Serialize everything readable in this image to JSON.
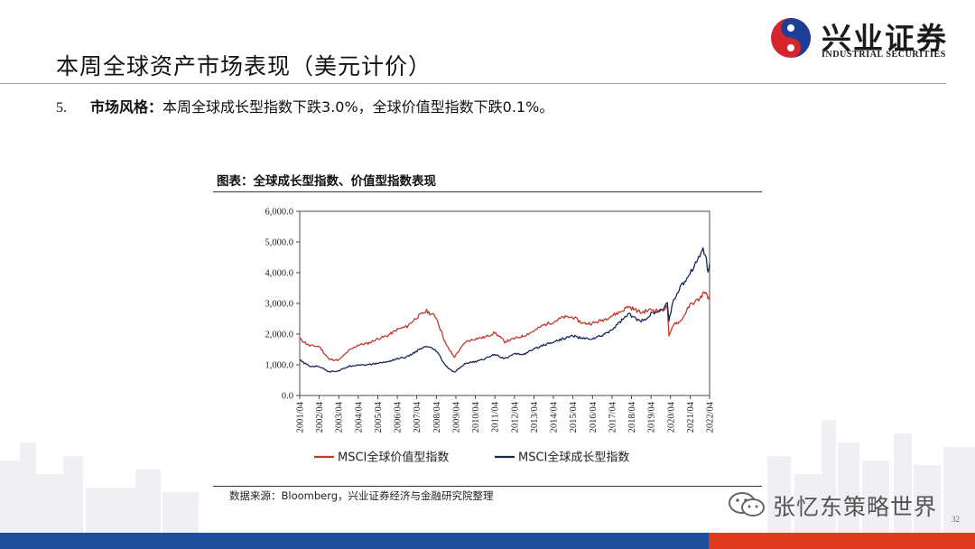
{
  "slide": {
    "title": "本周全球资产市场表现（美元计价）",
    "bullet_number": "5.",
    "bullet_label": "市场风格：",
    "bullet_text": "本周全球成长型指数下跌3.0%，全球价值型指数下跌0.1%。",
    "source": "数据来源：Bloomberg，兴业证券经济与金融研究院整理",
    "page_number": "32"
  },
  "logo": {
    "name_cn": "兴业证券",
    "name_en": "INDUSTRIAL SECURITIES"
  },
  "watermark": {
    "text": "张忆东策略世界",
    "icon": "wechat-icon"
  },
  "colors": {
    "value_series": "#c0392b",
    "growth_series": "#14285a",
    "logo_red": "#d6252c",
    "logo_blue": "#1c3f94",
    "footer_red": "#e23a1e",
    "footer_blue": "#1f4e9a"
  },
  "chart_data": {
    "type": "line",
    "title": "图表：全球成长型指数、价值型指数表现",
    "x": [
      "2001/04",
      "2002/04",
      "2003/04",
      "2004/04",
      "2005/04",
      "2006/04",
      "2007/04",
      "2008/04",
      "2009/04",
      "2010/04",
      "2011/04",
      "2012/04",
      "2013/04",
      "2014/04",
      "2015/04",
      "2016/04",
      "2017/04",
      "2018/04",
      "2019/04",
      "2020/04",
      "2021/04",
      "2022/04"
    ],
    "ylim": [
      0,
      6000
    ],
    "yticks": [
      "0.0",
      "1,000.0",
      "2,000.0",
      "3,000.0",
      "4,000.0",
      "5,000.0",
      "6,000.0"
    ],
    "ytick_values": [
      0,
      1000,
      2000,
      3000,
      4000,
      5000,
      6000
    ],
    "legend_position": "bottom",
    "series": [
      {
        "name": "MSCI全球价值型指数",
        "color": "#c0392b",
        "points": [
          [
            "2001/04",
            1850
          ],
          [
            "2001/10",
            1620
          ],
          [
            "2002/04",
            1600
          ],
          [
            "2002/10",
            1180
          ],
          [
            "2003/04",
            1150
          ],
          [
            "2003/10",
            1450
          ],
          [
            "2004/04",
            1650
          ],
          [
            "2004/10",
            1700
          ],
          [
            "2005/04",
            1850
          ],
          [
            "2005/10",
            1950
          ],
          [
            "2006/04",
            2150
          ],
          [
            "2006/10",
            2250
          ],
          [
            "2007/04",
            2550
          ],
          [
            "2007/10",
            2750
          ],
          [
            "2008/04",
            2550
          ],
          [
            "2008/10",
            1650
          ],
          [
            "2009/03",
            1250
          ],
          [
            "2009/10",
            1750
          ],
          [
            "2010/04",
            1850
          ],
          [
            "2010/10",
            1900
          ],
          [
            "2011/04",
            2050
          ],
          [
            "2011/10",
            1750
          ],
          [
            "2012/04",
            1850
          ],
          [
            "2012/10",
            1950
          ],
          [
            "2013/04",
            2100
          ],
          [
            "2013/10",
            2300
          ],
          [
            "2014/04",
            2400
          ],
          [
            "2014/10",
            2550
          ],
          [
            "2015/04",
            2550
          ],
          [
            "2015/10",
            2350
          ],
          [
            "2016/04",
            2350
          ],
          [
            "2016/10",
            2450
          ],
          [
            "2017/04",
            2600
          ],
          [
            "2017/10",
            2750
          ],
          [
            "2018/02",
            2900
          ],
          [
            "2018/10",
            2700
          ],
          [
            "2019/04",
            2800
          ],
          [
            "2019/10",
            2750
          ],
          [
            "2020/02",
            2900
          ],
          [
            "2020/03",
            1900
          ],
          [
            "2020/06",
            2350
          ],
          [
            "2020/10",
            2400
          ],
          [
            "2021/04",
            2950
          ],
          [
            "2021/10",
            3150
          ],
          [
            "2022/01",
            3400
          ],
          [
            "2022/03",
            3150
          ],
          [
            "2022/04",
            3300
          ]
        ]
      },
      {
        "name": "MSCI全球成长型指数",
        "color": "#14285a",
        "points": [
          [
            "2001/04",
            1150
          ],
          [
            "2001/10",
            950
          ],
          [
            "2002/04",
            950
          ],
          [
            "2002/10",
            780
          ],
          [
            "2003/04",
            800
          ],
          [
            "2003/10",
            950
          ],
          [
            "2004/04",
            1000
          ],
          [
            "2004/10",
            1000
          ],
          [
            "2005/04",
            1050
          ],
          [
            "2005/10",
            1100
          ],
          [
            "2006/04",
            1200
          ],
          [
            "2006/10",
            1250
          ],
          [
            "2007/04",
            1450
          ],
          [
            "2007/10",
            1600
          ],
          [
            "2008/04",
            1450
          ],
          [
            "2008/10",
            950
          ],
          [
            "2009/03",
            750
          ],
          [
            "2009/10",
            1050
          ],
          [
            "2010/04",
            1100
          ],
          [
            "2010/10",
            1200
          ],
          [
            "2011/04",
            1350
          ],
          [
            "2011/10",
            1200
          ],
          [
            "2012/04",
            1350
          ],
          [
            "2012/10",
            1350
          ],
          [
            "2013/04",
            1500
          ],
          [
            "2013/10",
            1650
          ],
          [
            "2014/04",
            1750
          ],
          [
            "2014/10",
            1850
          ],
          [
            "2015/04",
            1950
          ],
          [
            "2015/10",
            1850
          ],
          [
            "2016/04",
            1850
          ],
          [
            "2016/10",
            1950
          ],
          [
            "2017/04",
            2150
          ],
          [
            "2017/10",
            2450
          ],
          [
            "2018/02",
            2650
          ],
          [
            "2018/10",
            2400
          ],
          [
            "2019/04",
            2650
          ],
          [
            "2019/10",
            2750
          ],
          [
            "2020/02",
            3000
          ],
          [
            "2020/03",
            2450
          ],
          [
            "2020/06",
            3150
          ],
          [
            "2020/10",
            3500
          ],
          [
            "2021/04",
            4000
          ],
          [
            "2021/10",
            4550
          ],
          [
            "2021/12",
            4800
          ],
          [
            "2022/02",
            4500
          ],
          [
            "2022/03",
            3950
          ],
          [
            "2022/04",
            4300
          ]
        ]
      }
    ]
  }
}
